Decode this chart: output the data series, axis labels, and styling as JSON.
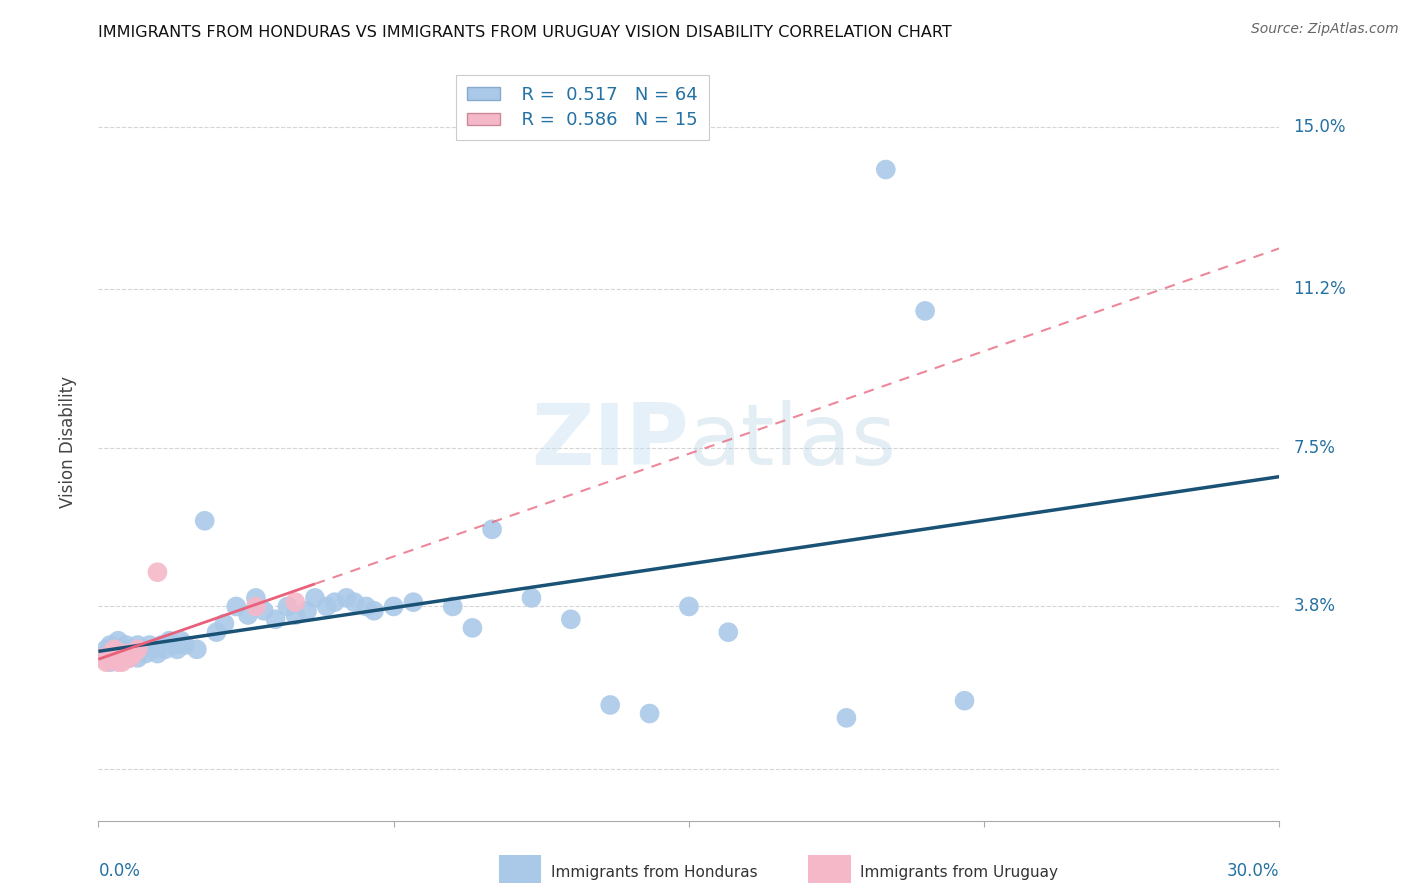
{
  "title": "IMMIGRANTS FROM HONDURAS VS IMMIGRANTS FROM URUGUAY VISION DISABILITY CORRELATION CHART",
  "source": "Source: ZipAtlas.com",
  "ylabel": "Vision Disability",
  "yticks": [
    0.0,
    0.038,
    0.075,
    0.112,
    0.15
  ],
  "ytick_labels": [
    "",
    "3.8%",
    "7.5%",
    "11.2%",
    "15.0%"
  ],
  "xlim": [
    0.0,
    0.3
  ],
  "ylim": [
    -0.012,
    0.165
  ],
  "watermark": "ZIPatlas",
  "honduras_color": "#aac9e8",
  "uruguay_color": "#f5b8c8",
  "honduras_line_color": "#1a5276",
  "uruguay_line_color": "#e8607a",
  "background_color": "#ffffff",
  "grid_color": "#d5d5d5",
  "honduras_x": [
    0.001,
    0.002,
    0.002,
    0.003,
    0.003,
    0.004,
    0.004,
    0.005,
    0.005,
    0.006,
    0.006,
    0.007,
    0.007,
    0.008,
    0.008,
    0.009,
    0.01,
    0.01,
    0.011,
    0.012,
    0.013,
    0.014,
    0.015,
    0.016,
    0.017,
    0.018,
    0.019,
    0.02,
    0.021,
    0.022,
    0.025,
    0.027,
    0.03,
    0.032,
    0.035,
    0.038,
    0.04,
    0.042,
    0.045,
    0.048,
    0.05,
    0.053,
    0.055,
    0.058,
    0.06,
    0.063,
    0.065,
    0.068,
    0.07,
    0.075,
    0.08,
    0.09,
    0.095,
    0.1,
    0.11,
    0.12,
    0.13,
    0.14,
    0.15,
    0.16,
    0.19,
    0.2,
    0.21,
    0.22
  ],
  "honduras_y": [
    0.026,
    0.027,
    0.028,
    0.025,
    0.029,
    0.026,
    0.028,
    0.027,
    0.03,
    0.026,
    0.028,
    0.027,
    0.029,
    0.026,
    0.028,
    0.027,
    0.026,
    0.029,
    0.028,
    0.027,
    0.029,
    0.028,
    0.027,
    0.029,
    0.028,
    0.03,
    0.029,
    0.028,
    0.03,
    0.029,
    0.028,
    0.058,
    0.032,
    0.034,
    0.038,
    0.036,
    0.04,
    0.037,
    0.035,
    0.038,
    0.036,
    0.037,
    0.04,
    0.038,
    0.039,
    0.04,
    0.039,
    0.038,
    0.037,
    0.038,
    0.039,
    0.038,
    0.033,
    0.056,
    0.04,
    0.035,
    0.015,
    0.013,
    0.038,
    0.032,
    0.012,
    0.14,
    0.107,
    0.016
  ],
  "uruguay_x": [
    0.001,
    0.002,
    0.003,
    0.003,
    0.004,
    0.005,
    0.005,
    0.006,
    0.007,
    0.008,
    0.009,
    0.01,
    0.015,
    0.04,
    0.05
  ],
  "uruguay_y": [
    0.026,
    0.025,
    0.027,
    0.026,
    0.028,
    0.025,
    0.026,
    0.025,
    0.027,
    0.026,
    0.027,
    0.028,
    0.046,
    0.038,
    0.039
  ],
  "xtick_positions": [
    0.0,
    0.075,
    0.15,
    0.225,
    0.3
  ]
}
